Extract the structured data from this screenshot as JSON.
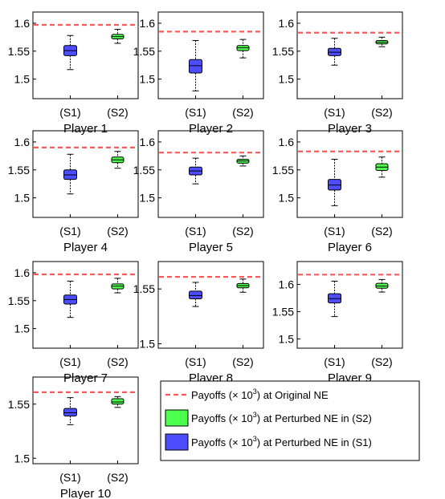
{
  "chart_data": [
    {
      "type": "box",
      "title": "Player 1",
      "categories": [
        "(S1)",
        "(S2)"
      ],
      "yticks": [
        "1.5",
        "1.55",
        "1.6"
      ],
      "ylim": [
        1.465,
        1.62
      ],
      "ne": 1.597,
      "boxes": [
        {
          "min": 1.517,
          "q1": 1.542,
          "median": 1.551,
          "q3": 1.56,
          "max": 1.578
        },
        {
          "min": 1.564,
          "q1": 1.572,
          "median": 1.576,
          "q3": 1.58,
          "max": 1.589
        }
      ]
    },
    {
      "type": "box",
      "title": "Player 2",
      "categories": [
        "(S1)",
        "(S2)"
      ],
      "yticks": [
        "1.5",
        "1.55",
        "1.6"
      ],
      "ylim": [
        1.465,
        1.62
      ],
      "ne": 1.585,
      "boxes": [
        {
          "min": 1.479,
          "q1": 1.511,
          "median": 1.524,
          "q3": 1.535,
          "max": 1.569
        },
        {
          "min": 1.538,
          "q1": 1.551,
          "median": 1.556,
          "q3": 1.56,
          "max": 1.571
        }
      ]
    },
    {
      "type": "box",
      "title": "Player 3",
      "categories": [
        "(S1)",
        "(S2)"
      ],
      "yticks": [
        "1.5",
        "1.55",
        "1.6"
      ],
      "ylim": [
        1.465,
        1.62
      ],
      "ne": 1.583,
      "boxes": [
        {
          "min": 1.525,
          "q1": 1.542,
          "median": 1.548,
          "q3": 1.555,
          "max": 1.573
        },
        {
          "min": 1.558,
          "q1": 1.563,
          "median": 1.566,
          "q3": 1.569,
          "max": 1.575
        }
      ]
    },
    {
      "type": "box",
      "title": "Player 4",
      "categories": [
        "(S1)",
        "(S2)"
      ],
      "yticks": [
        "1.5",
        "1.55",
        "1.6"
      ],
      "ylim": [
        1.465,
        1.62
      ],
      "ne": 1.59,
      "boxes": [
        {
          "min": 1.507,
          "q1": 1.533,
          "median": 1.541,
          "q3": 1.55,
          "max": 1.578
        },
        {
          "min": 1.553,
          "q1": 1.563,
          "median": 1.568,
          "q3": 1.573,
          "max": 1.583
        }
      ]
    },
    {
      "type": "box",
      "title": "Player 5",
      "categories": [
        "(S1)",
        "(S2)"
      ],
      "yticks": [
        "1.5",
        "1.55",
        "1.6"
      ],
      "ylim": [
        1.465,
        1.62
      ],
      "ne": 1.581,
      "boxes": [
        {
          "min": 1.525,
          "q1": 1.541,
          "median": 1.548,
          "q3": 1.555,
          "max": 1.571
        },
        {
          "min": 1.557,
          "q1": 1.562,
          "median": 1.566,
          "q3": 1.569,
          "max": 1.575
        }
      ]
    },
    {
      "type": "box",
      "title": "Player 6",
      "categories": [
        "(S1)",
        "(S2)"
      ],
      "yticks": [
        "1.5",
        "1.55",
        "1.6"
      ],
      "ylim": [
        1.465,
        1.62
      ],
      "ne": 1.583,
      "boxes": [
        {
          "min": 1.486,
          "q1": 1.514,
          "median": 1.523,
          "q3": 1.533,
          "max": 1.569
        },
        {
          "min": 1.537,
          "q1": 1.549,
          "median": 1.555,
          "q3": 1.561,
          "max": 1.573
        }
      ]
    },
    {
      "type": "box",
      "title": "Player 7",
      "categories": [
        "(S1)",
        "(S2)"
      ],
      "yticks": [
        "1.5",
        "1.55",
        "1.6"
      ],
      "ylim": [
        1.465,
        1.62
      ],
      "ne": 1.597,
      "boxes": [
        {
          "min": 1.52,
          "q1": 1.544,
          "median": 1.552,
          "q3": 1.56,
          "max": 1.585
        },
        {
          "min": 1.564,
          "q1": 1.571,
          "median": 1.576,
          "q3": 1.58,
          "max": 1.59
        }
      ]
    },
    {
      "type": "box",
      "title": "Player 8",
      "categories": [
        "(S1)",
        "(S2)"
      ],
      "yticks": [
        "1.5",
        "1.55"
      ],
      "ylim": [
        1.496,
        1.575
      ],
      "ne": 1.561,
      "boxes": [
        {
          "min": 1.534,
          "q1": 1.541,
          "median": 1.544,
          "q3": 1.548,
          "max": 1.556
        },
        {
          "min": 1.547,
          "q1": 1.551,
          "median": 1.553,
          "q3": 1.555,
          "max": 1.559
        }
      ]
    },
    {
      "type": "box",
      "title": "Player 9",
      "categories": [
        "(S1)",
        "(S2)"
      ],
      "yticks": [
        "1.5",
        "1.55",
        "1.6"
      ],
      "ylim": [
        1.483,
        1.642
      ],
      "ne": 1.618,
      "boxes": [
        {
          "min": 1.541,
          "q1": 1.566,
          "median": 1.574,
          "q3": 1.583,
          "max": 1.606
        },
        {
          "min": 1.586,
          "q1": 1.593,
          "median": 1.597,
          "q3": 1.602,
          "max": 1.609
        }
      ]
    },
    {
      "type": "box",
      "title": "Player 10",
      "categories": [
        "(S1)",
        "(S2)"
      ],
      "yticks": [
        "1.5",
        "1.55"
      ],
      "ylim": [
        1.495,
        1.575
      ],
      "ne": 1.561,
      "boxes": [
        {
          "min": 1.531,
          "q1": 1.539,
          "median": 1.542,
          "q3": 1.546,
          "max": 1.556
        },
        {
          "min": 1.547,
          "q1": 1.55,
          "median": 1.552,
          "q3": 1.555,
          "max": 1.557
        }
      ]
    }
  ],
  "legend": {
    "position": "bottom-right",
    "entries": [
      {
        "kind": "dashed-line",
        "prefix": "Payoffs (",
        "times": "×",
        "base": " 10",
        "exp": "3",
        "suffix": ") at Original NE"
      },
      {
        "kind": "box",
        "prefix": "Payoffs (",
        "times": "×",
        "base": " 10",
        "exp": "3",
        "suffix": ") at Perturbed NE in (S2)"
      },
      {
        "kind": "box",
        "prefix": "Payoffs (",
        "times": "×",
        "base": " 10",
        "exp": "3",
        "suffix": ") at Perturbed NE in (S1)"
      }
    ]
  },
  "colors": {
    "s1": "#4d4dff",
    "s2": "#4dff4d",
    "ne": "#ff5a5a",
    "axis": "#000000"
  }
}
